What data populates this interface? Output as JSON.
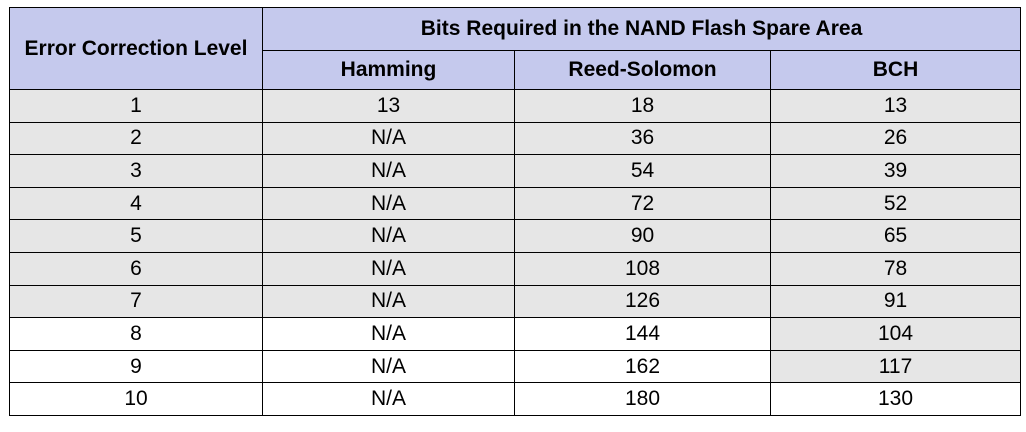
{
  "table": {
    "corner_header": "Error Correction Level",
    "group_header": "Bits Required in the NAND Flash Spare Area",
    "columns": [
      "Hamming",
      "Reed-Solomon",
      "BCH"
    ],
    "rows": [
      {
        "level": "1",
        "hamming": "13",
        "reed_solomon": "18",
        "bch": "13"
      },
      {
        "level": "2",
        "hamming": "N/A",
        "reed_solomon": "36",
        "bch": "26"
      },
      {
        "level": "3",
        "hamming": "N/A",
        "reed_solomon": "54",
        "bch": "39"
      },
      {
        "level": "4",
        "hamming": "N/A",
        "reed_solomon": "72",
        "bch": "52"
      },
      {
        "level": "5",
        "hamming": "N/A",
        "reed_solomon": "90",
        "bch": "65"
      },
      {
        "level": "6",
        "hamming": "N/A",
        "reed_solomon": "108",
        "bch": "78"
      },
      {
        "level": "7",
        "hamming": "N/A",
        "reed_solomon": "126",
        "bch": "91"
      },
      {
        "level": "8",
        "hamming": "N/A",
        "reed_solomon": "144",
        "bch": "104"
      },
      {
        "level": "9",
        "hamming": "N/A",
        "reed_solomon": "162",
        "bch": "117"
      },
      {
        "level": "10",
        "hamming": "N/A",
        "reed_solomon": "180",
        "bch": "130"
      }
    ]
  },
  "colors": {
    "header_bg": "#c5c9ed",
    "shaded_cell_bg": "#e6e6e6",
    "plain_cell_bg": "#ffffff"
  }
}
